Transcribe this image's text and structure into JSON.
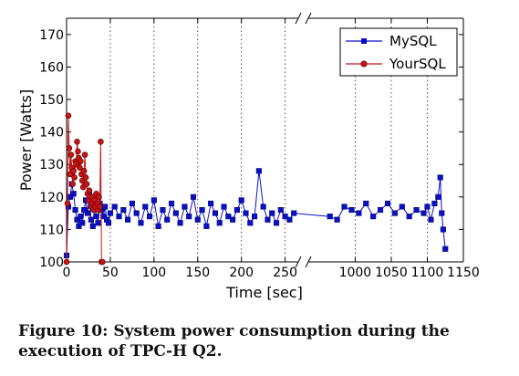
{
  "chart_data": {
    "type": "line",
    "title": "",
    "xlabel": "Time [sec]",
    "ylabel": "Power [Watts]",
    "ylim": [
      100,
      175
    ],
    "yticks": [
      100,
      110,
      120,
      130,
      140,
      150,
      160,
      170
    ],
    "broken_x_axis": true,
    "x_segments": [
      {
        "range": [
          0,
          265
        ],
        "ticks": [
          0,
          50,
          100,
          150,
          200,
          250
        ]
      },
      {
        "range": [
          935,
          1150
        ],
        "ticks": [
          1000,
          1050,
          1100,
          1150
        ]
      }
    ],
    "grid": "vertical dotted at x ticks",
    "legend_position": "top-right",
    "series": [
      {
        "name": "MySQL",
        "color": "#0a10c8",
        "marker": "square",
        "x": [
          0,
          2,
          4,
          6,
          8,
          10,
          12,
          14,
          16,
          18,
          20,
          22,
          24,
          26,
          28,
          30,
          32,
          34,
          36,
          38,
          40,
          42,
          44,
          46,
          48,
          50,
          55,
          60,
          65,
          70,
          75,
          80,
          85,
          90,
          95,
          100,
          105,
          110,
          115,
          120,
          125,
          130,
          135,
          140,
          145,
          150,
          155,
          160,
          165,
          170,
          175,
          180,
          185,
          190,
          195,
          200,
          205,
          210,
          215,
          220,
          225,
          230,
          235,
          240,
          245,
          250,
          255,
          260,
          965,
          975,
          985,
          995,
          1005,
          1015,
          1025,
          1035,
          1045,
          1055,
          1065,
          1075,
          1085,
          1095,
          1100,
          1105,
          1110,
          1115,
          1118,
          1120,
          1122,
          1125
        ],
        "values": [
          102,
          117,
          120,
          124,
          121,
          116,
          113,
          111,
          114,
          112,
          116,
          119,
          115,
          121,
          113,
          111,
          117,
          114,
          112,
          118,
          116,
          114,
          117,
          113,
          112,
          115,
          117,
          114,
          116,
          113,
          118,
          115,
          112,
          117,
          114,
          119,
          111,
          116,
          113,
          118,
          115,
          112,
          117,
          114,
          120,
          113,
          116,
          111,
          118,
          115,
          112,
          117,
          114,
          113,
          116,
          119,
          115,
          112,
          114,
          128,
          117,
          113,
          115,
          112,
          116,
          114,
          113,
          115,
          114,
          113,
          117,
          116,
          115,
          118,
          114,
          116,
          118,
          115,
          117,
          114,
          116,
          115,
          117,
          113,
          118,
          120,
          126,
          115,
          110,
          104
        ]
      },
      {
        "name": "YourSQL",
        "color": "#c81414",
        "marker": "circle",
        "x": [
          0,
          1,
          2,
          3,
          4,
          5,
          6,
          7,
          8,
          9,
          10,
          11,
          12,
          13,
          14,
          15,
          16,
          17,
          18,
          19,
          20,
          21,
          22,
          23,
          24,
          25,
          26,
          27,
          28,
          29,
          30,
          31,
          32,
          33,
          34,
          35,
          36,
          37,
          38,
          39,
          40,
          41
        ],
        "values": [
          100,
          118,
          145,
          135,
          127,
          133,
          129,
          124,
          128,
          126,
          131,
          130,
          137,
          134,
          132,
          129,
          131,
          127,
          125,
          123,
          128,
          133,
          126,
          124,
          121,
          119,
          122,
          120,
          117,
          118,
          120,
          116,
          119,
          117,
          121,
          118,
          116,
          120,
          117,
          137,
          100,
          100
        ]
      }
    ]
  },
  "caption": "Figure 10:  System power consumption during the execution of TPC-H Q2."
}
